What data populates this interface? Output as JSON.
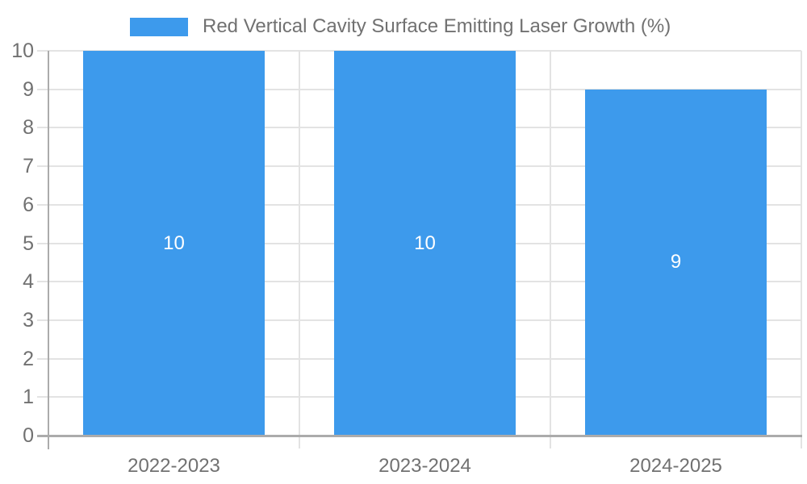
{
  "chart_data": {
    "type": "bar",
    "title": "Red Vertical Cavity Surface Emitting Laser Growth (%)",
    "legend": {
      "position": "top"
    },
    "categories": [
      "2022-2023",
      "2023-2024",
      "2024-2025"
    ],
    "series": [
      {
        "name": "Red Vertical Cavity Surface Emitting Laser Growth (%)",
        "values": [
          10,
          10,
          9
        ]
      }
    ],
    "bar_value_labels": [
      "10",
      "10",
      "9"
    ],
    "xlabel": "",
    "ylabel": "",
    "ylim": [
      0,
      10
    ],
    "yticks": [
      0,
      1,
      2,
      3,
      4,
      5,
      6,
      7,
      8,
      9,
      10
    ],
    "grid": true,
    "colors": {
      "bar": "#3D9AEC",
      "bar_label_text": "#FFFFFF",
      "grid_line": "#E3E3E3",
      "axis_line": "#ABABAB",
      "tick_text": "#717171",
      "legend_text": "#717171",
      "background": "#FFFFFF"
    }
  }
}
